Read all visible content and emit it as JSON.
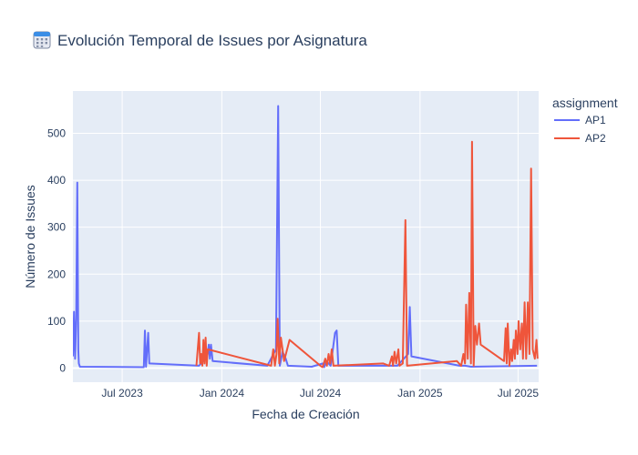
{
  "chart_data": {
    "type": "line",
    "title": "Evolución Temporal de Issues por Asignatura",
    "title_icon": "calendar-icon",
    "xlabel": "Fecha de Creación",
    "ylabel": "Número de Issues",
    "x_type": "date",
    "xlim": [
      "2023-04-01",
      "2025-08-08"
    ],
    "ylim": [
      -30,
      590
    ],
    "x_ticks": [
      {
        "value": "2023-07-01",
        "label": "Jul 2023"
      },
      {
        "value": "2024-01-01",
        "label": "Jan 2024"
      },
      {
        "value": "2024-07-01",
        "label": "Jul 2024"
      },
      {
        "value": "2025-01-01",
        "label": "Jan 2025"
      },
      {
        "value": "2025-07-01",
        "label": "Jul 2025"
      }
    ],
    "y_ticks": [
      0,
      100,
      200,
      300,
      400,
      500
    ],
    "grid": true,
    "legend": {
      "title": "assignment",
      "position": "right"
    },
    "series": [
      {
        "name": "AP1",
        "color": "#636efa",
        "points": [
          [
            "2023-04-01",
            25
          ],
          [
            "2023-04-03",
            120
          ],
          [
            "2023-04-05",
            20
          ],
          [
            "2023-04-07",
            105
          ],
          [
            "2023-04-09",
            395
          ],
          [
            "2023-04-11",
            40
          ],
          [
            "2023-04-12",
            10
          ],
          [
            "2023-04-14",
            3
          ],
          [
            "2023-08-10",
            2
          ],
          [
            "2023-08-12",
            80
          ],
          [
            "2023-08-14",
            3
          ],
          [
            "2023-08-18",
            75
          ],
          [
            "2023-08-20",
            10
          ],
          [
            "2023-11-20",
            5
          ],
          [
            "2023-12-05",
            25
          ],
          [
            "2023-12-08",
            50
          ],
          [
            "2023-12-10",
            20
          ],
          [
            "2023-12-12",
            50
          ],
          [
            "2023-12-15",
            15
          ],
          [
            "2024-03-25",
            5
          ],
          [
            "2024-04-10",
            40
          ],
          [
            "2024-04-14",
            558
          ],
          [
            "2024-04-17",
            5
          ],
          [
            "2024-04-22",
            35
          ],
          [
            "2024-04-28",
            20
          ],
          [
            "2024-05-02",
            5
          ],
          [
            "2024-06-15",
            3
          ],
          [
            "2024-07-05",
            10
          ],
          [
            "2024-07-08",
            2
          ],
          [
            "2024-07-12",
            15
          ],
          [
            "2024-07-20",
            5
          ],
          [
            "2024-07-28",
            75
          ],
          [
            "2024-07-31",
            80
          ],
          [
            "2024-08-03",
            5
          ],
          [
            "2024-11-20",
            5
          ],
          [
            "2024-12-10",
            30
          ],
          [
            "2024-12-13",
            130
          ],
          [
            "2024-12-16",
            25
          ],
          [
            "2025-03-15",
            5
          ],
          [
            "2025-03-25",
            5
          ],
          [
            "2025-04-05",
            3
          ],
          [
            "2025-08-05",
            5
          ]
        ]
      },
      {
        "name": "AP2",
        "color": "#ef553b",
        "points": [
          [
            "2023-11-15",
            5
          ],
          [
            "2023-11-20",
            75
          ],
          [
            "2023-11-22",
            10
          ],
          [
            "2023-11-24",
            30
          ],
          [
            "2023-11-26",
            5
          ],
          [
            "2023-11-28",
            60
          ],
          [
            "2023-11-30",
            10
          ],
          [
            "2023-12-02",
            65
          ],
          [
            "2023-12-04",
            5
          ],
          [
            "2023-12-06",
            40
          ],
          [
            "2024-04-01",
            5
          ],
          [
            "2024-04-05",
            40
          ],
          [
            "2024-04-08",
            5
          ],
          [
            "2024-04-11",
            30
          ],
          [
            "2024-04-13",
            105
          ],
          [
            "2024-04-16",
            10
          ],
          [
            "2024-04-19",
            65
          ],
          [
            "2024-04-22",
            40
          ],
          [
            "2024-04-25",
            15
          ],
          [
            "2024-05-05",
            60
          ],
          [
            "2024-07-01",
            5
          ],
          [
            "2024-07-05",
            2
          ],
          [
            "2024-07-10",
            20
          ],
          [
            "2024-07-13",
            5
          ],
          [
            "2024-07-16",
            30
          ],
          [
            "2024-07-19",
            10
          ],
          [
            "2024-07-22",
            40
          ],
          [
            "2024-07-25",
            5
          ],
          [
            "2024-10-25",
            10
          ],
          [
            "2024-11-05",
            5
          ],
          [
            "2024-11-10",
            25
          ],
          [
            "2024-11-12",
            5
          ],
          [
            "2024-11-15",
            35
          ],
          [
            "2024-11-18",
            10
          ],
          [
            "2024-11-22",
            40
          ],
          [
            "2024-11-24",
            5
          ],
          [
            "2024-11-30",
            10
          ],
          [
            "2024-12-05",
            315
          ],
          [
            "2024-12-08",
            5
          ],
          [
            "2025-03-10",
            15
          ],
          [
            "2025-03-18",
            5
          ],
          [
            "2025-03-22",
            30
          ],
          [
            "2025-03-25",
            10
          ],
          [
            "2025-03-27",
            135
          ],
          [
            "2025-03-30",
            20
          ],
          [
            "2025-04-02",
            160
          ],
          [
            "2025-04-05",
            10
          ],
          [
            "2025-04-07",
            482
          ],
          [
            "2025-04-10",
            5
          ],
          [
            "2025-04-13",
            90
          ],
          [
            "2025-04-16",
            50
          ],
          [
            "2025-04-20",
            95
          ],
          [
            "2025-04-23",
            50
          ],
          [
            "2025-06-05",
            15
          ],
          [
            "2025-06-08",
            85
          ],
          [
            "2025-06-10",
            10
          ],
          [
            "2025-06-12",
            95
          ],
          [
            "2025-06-15",
            5
          ],
          [
            "2025-06-18",
            40
          ],
          [
            "2025-06-20",
            15
          ],
          [
            "2025-06-23",
            60
          ],
          [
            "2025-06-25",
            20
          ],
          [
            "2025-06-27",
            80
          ],
          [
            "2025-06-30",
            30
          ],
          [
            "2025-07-02",
            100
          ],
          [
            "2025-07-05",
            40
          ],
          [
            "2025-07-08",
            95
          ],
          [
            "2025-07-10",
            20
          ],
          [
            "2025-07-13",
            140
          ],
          [
            "2025-07-16",
            20
          ],
          [
            "2025-07-19",
            140
          ],
          [
            "2025-07-22",
            30
          ],
          [
            "2025-07-25",
            425
          ],
          [
            "2025-07-28",
            40
          ],
          [
            "2025-08-01",
            20
          ],
          [
            "2025-08-04",
            60
          ],
          [
            "2025-08-06",
            20
          ]
        ]
      }
    ]
  }
}
